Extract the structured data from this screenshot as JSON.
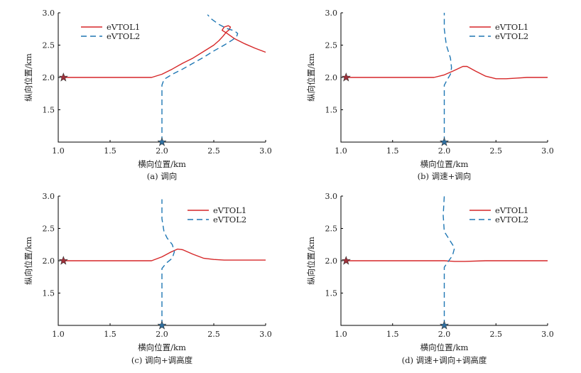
{
  "colors": {
    "eVTOL1": "#d62728",
    "eVTOL2": "#1f77b4",
    "start_marker_1": "#a0303a",
    "start_marker_2": "#2f6fa0"
  },
  "chart_data": [
    {
      "type": "line",
      "caption": "(a)   调向",
      "xlabel": "横向位置/km",
      "ylabel": "纵向位置/km",
      "xlim": [
        1.0,
        3.0
      ],
      "ylim": [
        1.0,
        3.0
      ],
      "xticks": [
        "1.0",
        "1.5",
        "2.0",
        "2.5",
        "3.0"
      ],
      "yticks": [
        "1.5",
        "2.0",
        "2.5",
        "3.0"
      ],
      "legend_position": "top-left",
      "series": [
        {
          "name": "eVTOL1",
          "style": "solid",
          "x": [
            1.05,
            1.5,
            1.9,
            2.0,
            2.1,
            2.2,
            2.3,
            2.4,
            2.5,
            2.55,
            2.59,
            2.62,
            2.65,
            2.66,
            2.64,
            2.6,
            2.58,
            2.62,
            2.7,
            2.8,
            2.9,
            3.0
          ],
          "y": [
            2.0,
            2.0,
            2.0,
            2.05,
            2.13,
            2.22,
            2.3,
            2.4,
            2.5,
            2.57,
            2.64,
            2.7,
            2.74,
            2.78,
            2.8,
            2.78,
            2.73,
            2.69,
            2.6,
            2.52,
            2.45,
            2.39
          ]
        },
        {
          "name": "eVTOL2",
          "style": "dashed",
          "x": [
            2.0,
            2.0,
            2.0,
            2.02,
            2.1,
            2.2,
            2.3,
            2.4,
            2.5,
            2.6,
            2.68,
            2.72,
            2.73,
            2.7,
            2.62,
            2.55,
            2.48,
            2.44
          ],
          "y": [
            1.0,
            1.3,
            1.88,
            1.97,
            2.05,
            2.13,
            2.22,
            2.31,
            2.41,
            2.5,
            2.58,
            2.63,
            2.68,
            2.72,
            2.76,
            2.82,
            2.9,
            2.97
          ]
        }
      ]
    },
    {
      "type": "line",
      "caption": "(b)   调速+调向",
      "xlabel": "横向位置/km",
      "ylabel": "纵向位置/km",
      "xlim": [
        1.0,
        3.0
      ],
      "ylim": [
        1.0,
        3.0
      ],
      "xticks": [
        "1.0",
        "1.5",
        "2.0",
        "2.5",
        "3.0"
      ],
      "yticks": [
        "1.5",
        "2.0",
        "2.5",
        "3.0"
      ],
      "legend_position": "top-right",
      "series": [
        {
          "name": "eVTOL1",
          "style": "solid",
          "x": [
            1.05,
            1.5,
            1.9,
            2.0,
            2.1,
            2.18,
            2.22,
            2.3,
            2.4,
            2.5,
            2.6,
            2.7,
            2.8,
            2.9,
            3.0
          ],
          "y": [
            2.0,
            2.0,
            2.0,
            2.04,
            2.11,
            2.17,
            2.17,
            2.1,
            2.02,
            1.98,
            1.98,
            1.99,
            2.0,
            2.0,
            2.0
          ]
        },
        {
          "name": "eVTOL2",
          "style": "dashed",
          "x": [
            2.0,
            2.0,
            2.0,
            2.03,
            2.06,
            2.07,
            2.06,
            2.02,
            2.0,
            2.0
          ],
          "y": [
            1.0,
            1.5,
            1.88,
            1.97,
            2.05,
            2.15,
            2.3,
            2.5,
            2.75,
            3.0
          ]
        }
      ]
    },
    {
      "type": "line",
      "caption": "(c)   调向+调高度",
      "xlabel": "横向位置/km",
      "ylabel": "纵向位置/km",
      "xlim": [
        1.0,
        3.0
      ],
      "ylim": [
        1.0,
        3.0
      ],
      "xticks": [
        "1.0",
        "1.5",
        "2.0",
        "2.5",
        "3.0"
      ],
      "yticks": [
        "1.5",
        "2.0",
        "2.5",
        "3.0"
      ],
      "legend_position": "top-right",
      "series": [
        {
          "name": "eVTOL1",
          "style": "solid",
          "x": [
            1.05,
            1.5,
            1.9,
            2.0,
            2.08,
            2.15,
            2.2,
            2.3,
            2.4,
            2.5,
            2.6,
            2.7,
            2.8,
            2.9,
            3.0
          ],
          "y": [
            2.0,
            2.0,
            2.0,
            2.06,
            2.13,
            2.18,
            2.17,
            2.1,
            2.04,
            2.02,
            2.01,
            2.01,
            2.01,
            2.01,
            2.01
          ]
        },
        {
          "name": "eVTOL2",
          "style": "dashed",
          "x": [
            2.0,
            2.0,
            2.0,
            2.04,
            2.1,
            2.12,
            2.1,
            2.05,
            2.02,
            2.0,
            2.0
          ],
          "y": [
            1.0,
            1.5,
            1.88,
            1.96,
            2.04,
            2.14,
            2.25,
            2.35,
            2.45,
            2.65,
            2.95
          ]
        }
      ]
    },
    {
      "type": "line",
      "caption": "(d)   调速+调向+调高度",
      "xlabel": "横向位置/km",
      "ylabel": "纵向位置/km",
      "xlim": [
        1.0,
        3.0
      ],
      "ylim": [
        1.0,
        3.0
      ],
      "xticks": [
        "1.0",
        "1.5",
        "2.0",
        "2.5",
        "3.0"
      ],
      "yticks": [
        "1.5",
        "2.0",
        "2.5",
        "3.0"
      ],
      "legend_position": "top-right",
      "series": [
        {
          "name": "eVTOL1",
          "style": "solid",
          "x": [
            1.05,
            1.5,
            1.9,
            2.0,
            2.1,
            2.2,
            2.4,
            2.6,
            2.8,
            3.0
          ],
          "y": [
            2.0,
            2.0,
            2.0,
            2.0,
            1.99,
            1.99,
            2.0,
            2.0,
            2.0,
            2.0
          ]
        },
        {
          "name": "eVTOL2",
          "style": "dashed",
          "x": [
            2.0,
            2.0,
            2.0,
            2.03,
            2.08,
            2.1,
            2.06,
            2.0,
            1.99,
            2.0
          ],
          "y": [
            1.0,
            1.5,
            1.9,
            1.97,
            2.08,
            2.2,
            2.3,
            2.45,
            2.7,
            3.0
          ]
        }
      ]
    }
  ]
}
